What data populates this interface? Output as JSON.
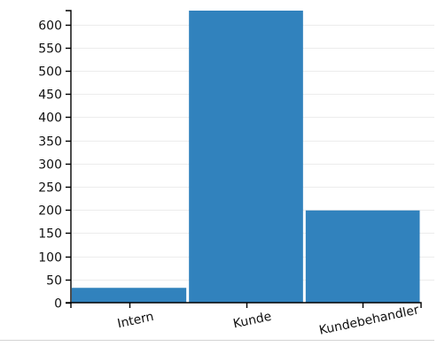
{
  "chart_data": {
    "type": "bar",
    "title": "",
    "xlabel": "",
    "ylabel": "",
    "categories": [
      "Intern",
      "Kunde",
      "Kundebehandler"
    ],
    "values": [
      32,
      630,
      199
    ],
    "ylim": [
      0,
      630
    ],
    "yticks": [
      0,
      50,
      100,
      150,
      200,
      250,
      300,
      350,
      400,
      450,
      500,
      550,
      600
    ],
    "grid": true,
    "legend": "none",
    "bar_color": "#3182bd",
    "grid_color": "#ececec",
    "axis_color": "#000000"
  }
}
